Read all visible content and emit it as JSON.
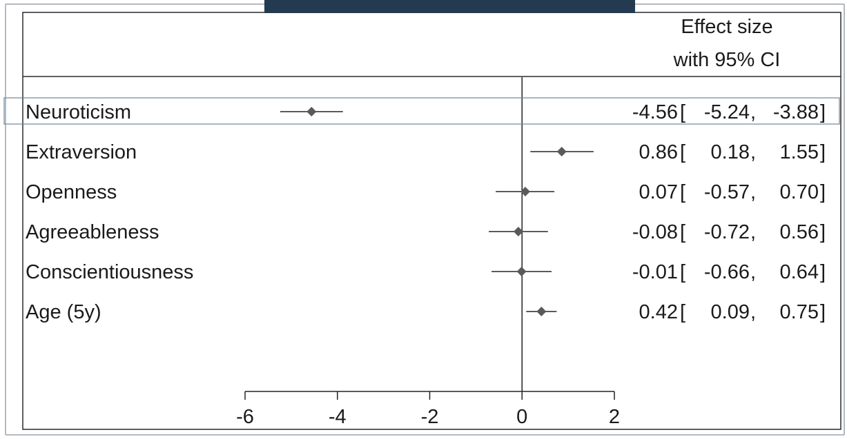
{
  "colors": {
    "header_bar": "#233a50",
    "marker": "#5a5a5a",
    "axis": "#222222",
    "text": "#1a1a1a",
    "highlight_box": "#6f8596"
  },
  "header": {
    "effect_line1": "Effect size",
    "effect_line2": "with 95% CI"
  },
  "chart_data": {
    "type": "forest",
    "title": "",
    "xlabel": "",
    "ylabel": "",
    "xlim": [
      -6,
      2
    ],
    "xticks": [
      -6,
      -4,
      -2,
      0,
      2
    ],
    "xtick_labels": [
      "-6",
      "-4",
      "-2",
      "0",
      "2"
    ],
    "reference_line": 0,
    "highlighted_row": "Neuroticism",
    "rows": [
      {
        "label": "Neuroticism",
        "estimate": -4.56,
        "lower": -5.24,
        "upper": -3.88,
        "est_text": "-4.56",
        "lo_text": "-5.24",
        "hi_text": "-3.88"
      },
      {
        "label": "Extraversion",
        "estimate": 0.86,
        "lower": 0.18,
        "upper": 1.55,
        "est_text": "0.86",
        "lo_text": "0.18",
        "hi_text": "1.55"
      },
      {
        "label": "Openness",
        "estimate": 0.07,
        "lower": -0.57,
        "upper": 0.7,
        "est_text": "0.07",
        "lo_text": "-0.57",
        "hi_text": "0.70"
      },
      {
        "label": "Agreeableness",
        "estimate": -0.08,
        "lower": -0.72,
        "upper": 0.56,
        "est_text": "-0.08",
        "lo_text": "-0.72",
        "hi_text": "0.56"
      },
      {
        "label": "Conscientiousness",
        "estimate": -0.01,
        "lower": -0.66,
        "upper": 0.64,
        "est_text": "-0.01",
        "lo_text": "-0.66",
        "hi_text": "0.64"
      },
      {
        "label": "Age (5y)",
        "estimate": 0.42,
        "lower": 0.09,
        "upper": 0.75,
        "est_text": "0.42",
        "lo_text": "0.09",
        "hi_text": "0.75"
      }
    ]
  }
}
